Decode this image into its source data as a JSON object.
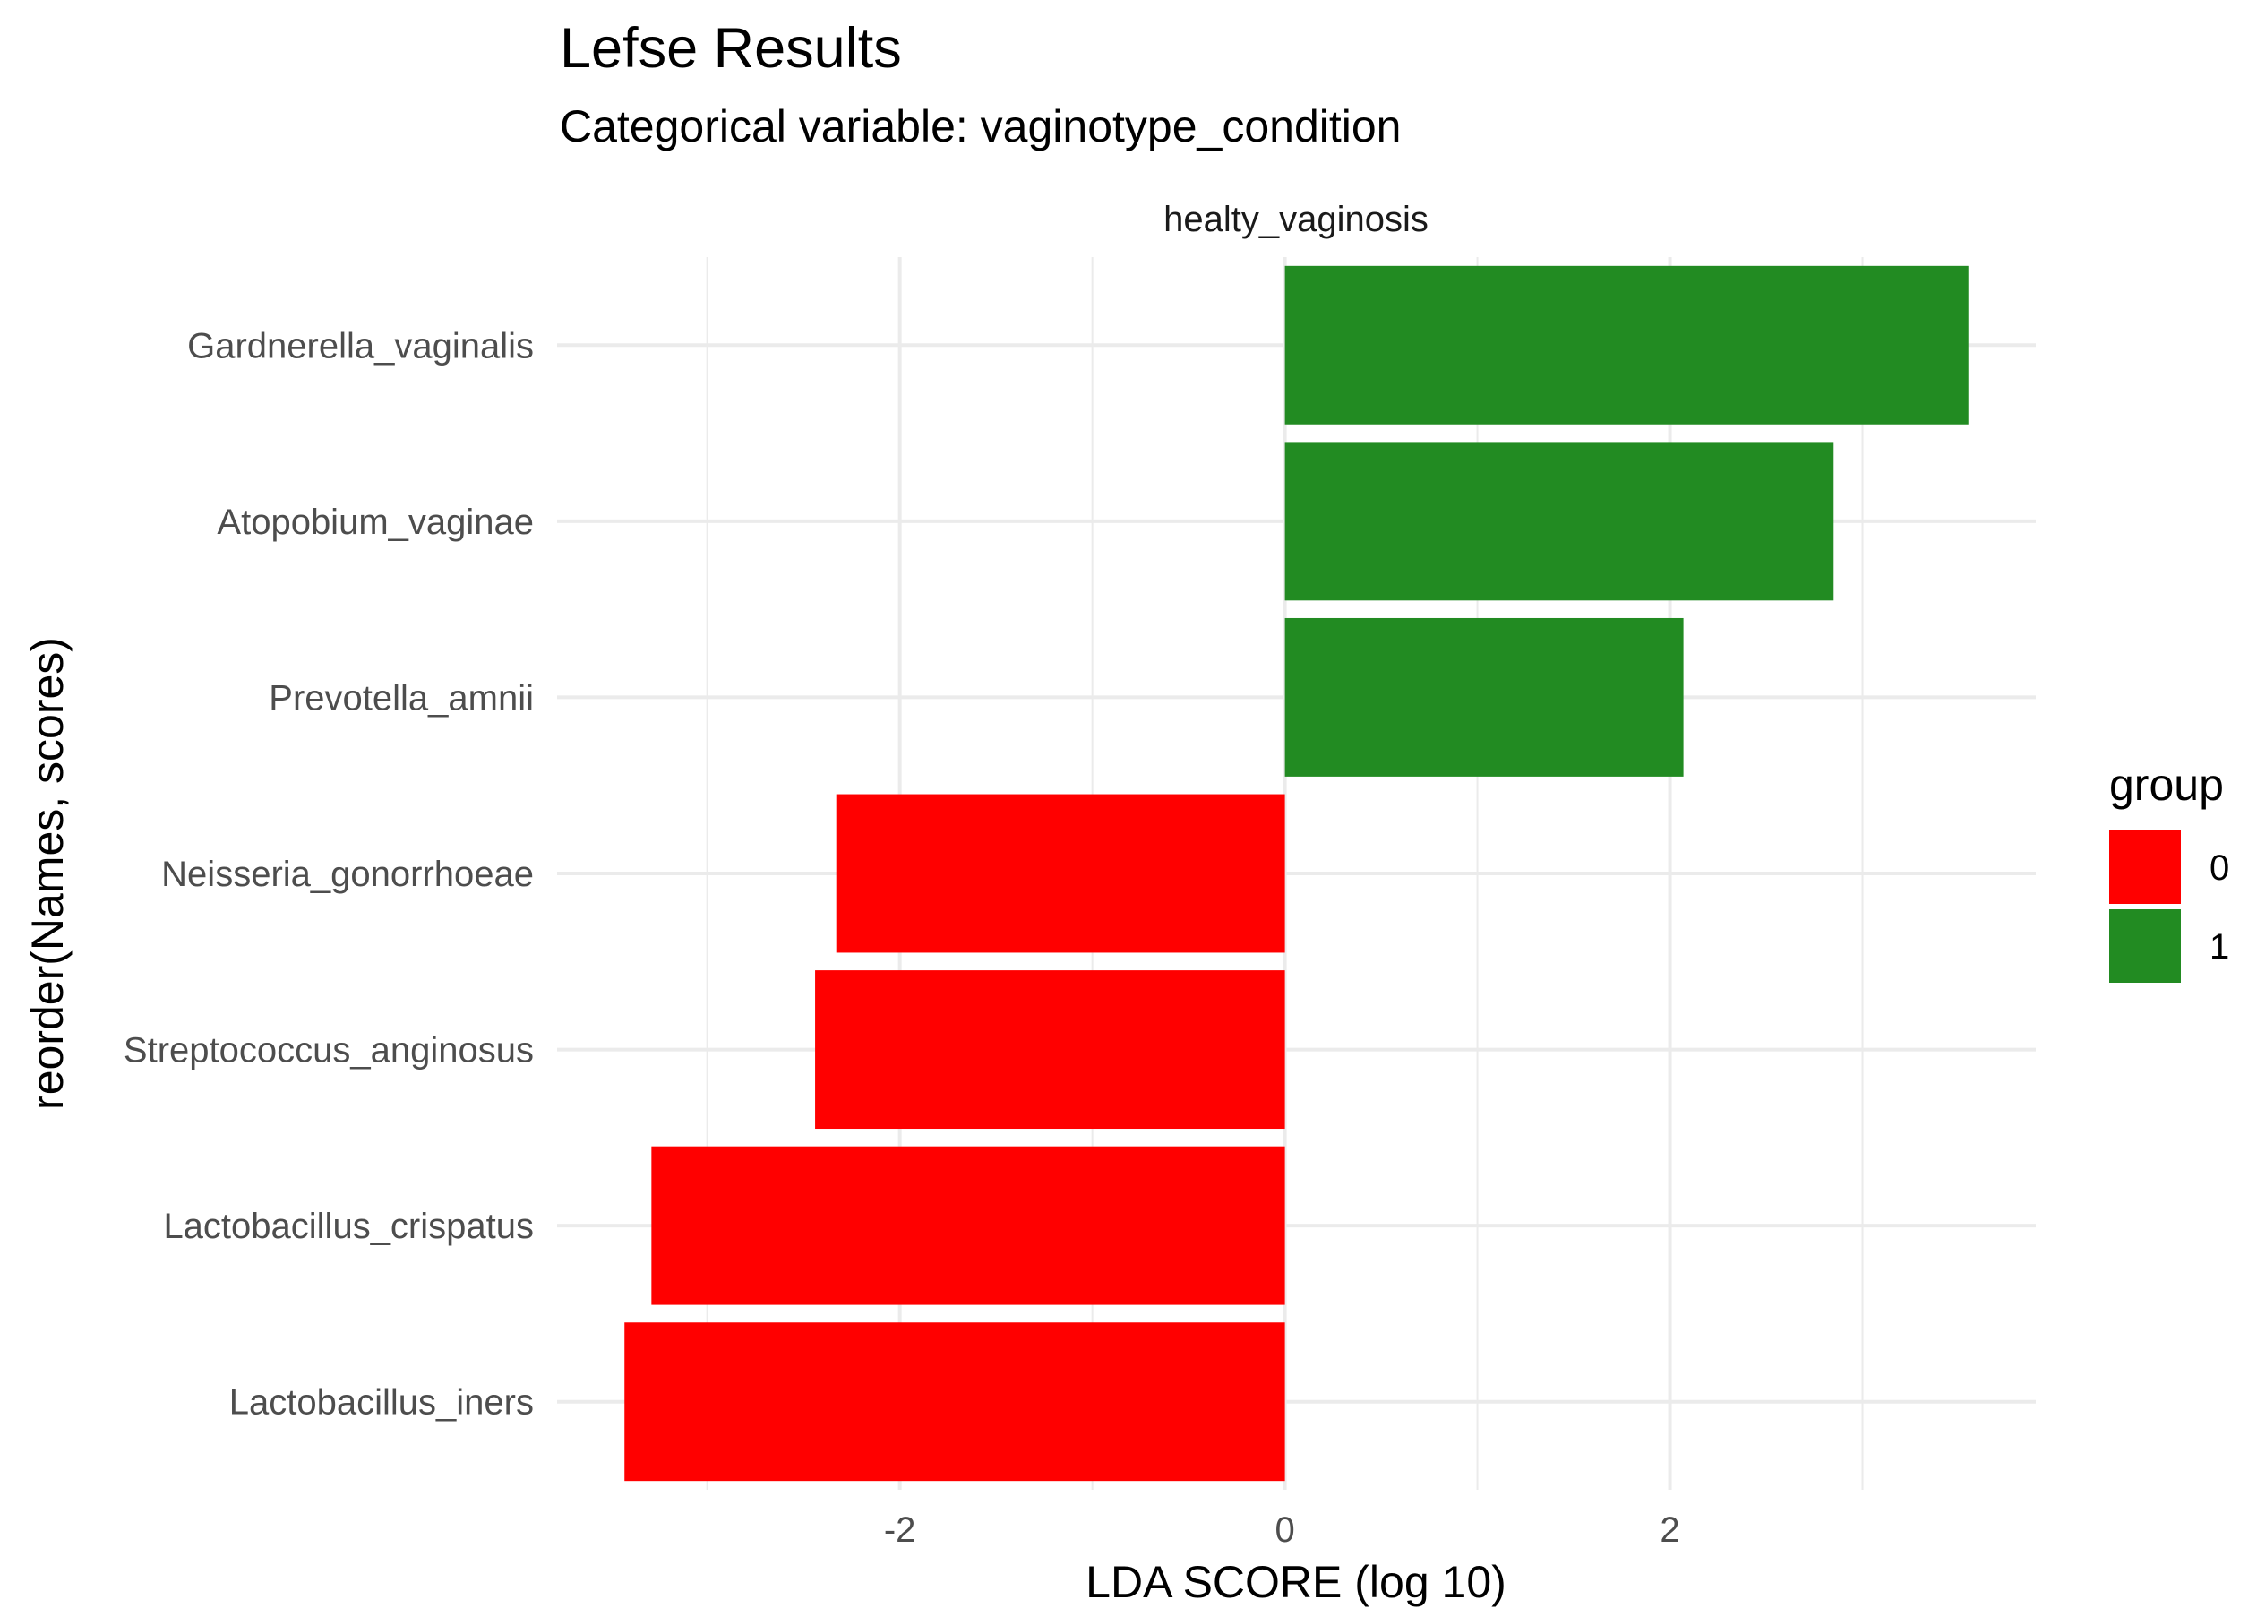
{
  "chart_data": {
    "type": "bar",
    "orientation": "horizontal",
    "title": "Lefse Results",
    "subtitle": "Categorical variable: vaginotype_condition",
    "facet_label": "healty_vaginosis",
    "xlabel": "LDA SCORE (log 10)",
    "ylabel": "reorder(Names, scores)",
    "xlim": [
      -3.78,
      3.9
    ],
    "x_ticks": [
      -2,
      0,
      2
    ],
    "x_tick_labels": [
      "-2",
      "0",
      "2"
    ],
    "grid": true,
    "legend": {
      "title": "group",
      "position": "right",
      "entries": [
        {
          "label": "0",
          "color": "#FF0000"
        },
        {
          "label": "1",
          "color": "#228B22"
        }
      ]
    },
    "categories": [
      "Gardnerella_vaginalis",
      "Atopobium_vaginae",
      "Prevotella_amnii",
      "Neisseria_gonorrhoeae",
      "Streptococcus_anginosus",
      "Lactobacillus_crispatus",
      "Lactobacillus_iners"
    ],
    "values": [
      3.55,
      2.85,
      2.07,
      -2.33,
      -2.44,
      -3.29,
      -3.43
    ],
    "groups": [
      "1",
      "1",
      "1",
      "0",
      "0",
      "0",
      "0"
    ]
  }
}
